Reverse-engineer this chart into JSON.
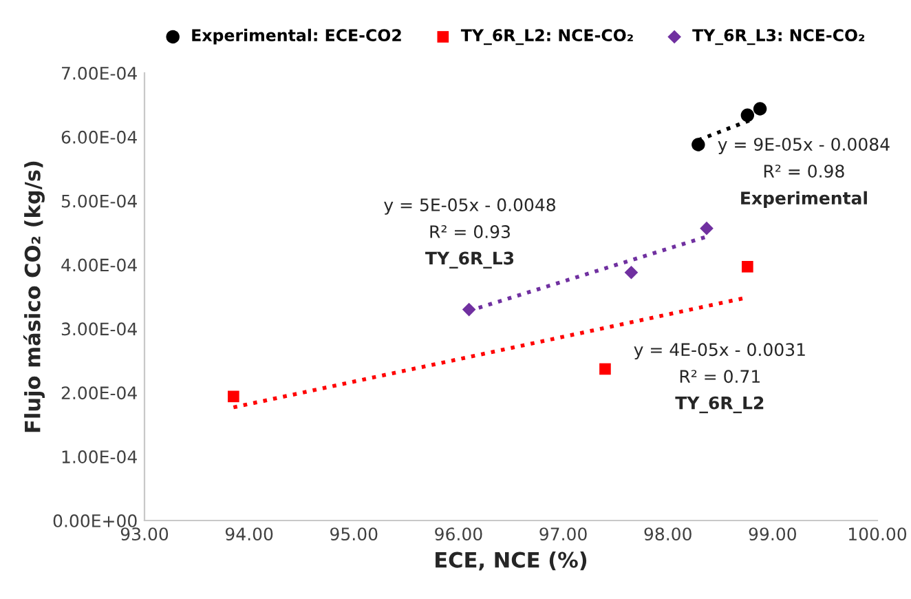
{
  "chart_data": {
    "type": "scatter",
    "xlabel": "ECE, NCE (%)",
    "ylabel": "Flujo másico CO₂ (kg/s)",
    "xlim": [
      93,
      100
    ],
    "xticks": [
      {
        "value": 93,
        "label": "93.00"
      },
      {
        "value": 94,
        "label": "94.00"
      },
      {
        "value": 95,
        "label": "95.00"
      },
      {
        "value": 96,
        "label": "96.00"
      },
      {
        "value": 97,
        "label": "97.00"
      },
      {
        "value": 98,
        "label": "98.00"
      },
      {
        "value": 99,
        "label": "99.00"
      },
      {
        "value": 100,
        "label": "100.00"
      }
    ],
    "ylim": [
      0,
      0.0007
    ],
    "yticks": [
      {
        "value": 0,
        "label": "0.00E+00"
      },
      {
        "value": 0.0001,
        "label": "1.00E-04"
      },
      {
        "value": 0.0002,
        "label": "2.00E-04"
      },
      {
        "value": 0.0003,
        "label": "3.00E-04"
      },
      {
        "value": 0.0004,
        "label": "4.00E-04"
      },
      {
        "value": 0.0005,
        "label": "5.00E-04"
      },
      {
        "value": 0.0006,
        "label": "6.00E-04"
      },
      {
        "value": 0.0007,
        "label": "7.00E-04"
      }
    ],
    "grid": false,
    "legend": "top",
    "series": [
      {
        "name": "Experimental: ECE-CO2",
        "color": "#000000",
        "marker": "circle",
        "x": [
          98.29,
          98.76,
          98.88
        ],
        "values": [
          0.000588,
          0.000634,
          0.000644
        ]
      },
      {
        "name": "TY_6R_L2: NCE-CO₂",
        "color": "#ff0000",
        "marker": "square",
        "x": [
          93.85,
          97.4,
          98.76
        ],
        "values": [
          0.000194,
          0.000237,
          0.000397
        ]
      },
      {
        "name": "TY_6R_L3: NCE-CO₂",
        "color": "#7030a0",
        "marker": "diamond",
        "x": [
          96.1,
          97.65,
          98.37
        ],
        "values": [
          0.00033,
          0.000388,
          0.000457
        ]
      },
      {
        "type": "line",
        "color": "#000000",
        "line_style": "dotted",
        "x": [
          98.29,
          98.8
        ],
        "values": [
          0.000595,
          0.000627
        ]
      },
      {
        "type": "line",
        "color": "#7030a0",
        "line_style": "dotted",
        "x": [
          96.1,
          98.37
        ],
        "values": [
          0.000328,
          0.000444
        ]
      },
      {
        "type": "line",
        "color": "#ff0000",
        "line_style": "dotted",
        "x": [
          93.85,
          98.76
        ],
        "values": [
          0.000177,
          0.000349
        ]
      }
    ],
    "annotations": [
      "y = 9E-05x - 0.0084",
      "R² = 0.98",
      "Experimental",
      "y = 5E-05x - 0.0048",
      "R² = 0.93",
      "TY_6R_L3",
      "y = 4E-05x - 0.0031",
      "R² = 0.71",
      "TY_6R_L2"
    ]
  }
}
